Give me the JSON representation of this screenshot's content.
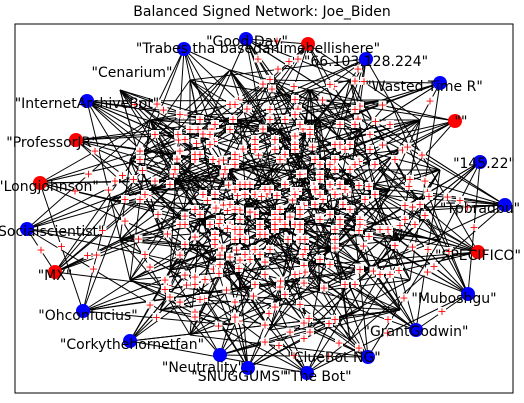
{
  "title": "Balanced Signed Network: Joe_Biden",
  "colors": {
    "negative_node": "#ff0000",
    "positive_node": "#0000ff",
    "edge": "#000000",
    "edge_sign": "#ff0000",
    "frame": "#000000"
  },
  "edge_sign_symbol": "+",
  "nodes": [
    {
      "id": "good-day",
      "label": "\"Good Day\"",
      "group": "positive"
    },
    {
      "id": "trabes",
      "label": "\"Trabes tha basedanimebellishere\"",
      "group": "negative"
    },
    {
      "id": "ip-66",
      "label": "\"66.103.128.224\"",
      "group": "positive"
    },
    {
      "id": "cenarium",
      "label": "\"Cenarium\"",
      "group": "positive"
    },
    {
      "id": "wasted-time",
      "label": "\"Wasted Time R\"",
      "group": "positive"
    },
    {
      "id": "internetarchivebot",
      "label": "\"InternetArchiveBot\"",
      "group": "positive"
    },
    {
      "id": "quote-node",
      "label": "\"\"",
      "group": "negative"
    },
    {
      "id": "professor-jr",
      "label": "\"ProfessorJR\"",
      "group": "negative"
    },
    {
      "id": "ip-145",
      "label": "\"145.22\"",
      "group": "positive"
    },
    {
      "id": "longjohnson",
      "label": "\"Longjohnson\"",
      "group": "negative"
    },
    {
      "id": "tpbradbu",
      "label": "\"Tpbradbu\"",
      "group": "positive"
    },
    {
      "id": "socialscientist",
      "label": "\"Socialscientist\"",
      "group": "positive"
    },
    {
      "id": "spectific",
      "label": "\"SPECIFICO\"",
      "group": "negative"
    },
    {
      "id": "mx",
      "label": "\"MX\"",
      "group": "negative"
    },
    {
      "id": "muboshgu",
      "label": "\"Muboshgu\"",
      "group": "positive"
    },
    {
      "id": "ohconfucius",
      "label": "\"Ohconfucius\"",
      "group": "positive"
    },
    {
      "id": "grant-godwin",
      "label": "\"GrantGodwin\"",
      "group": "positive"
    },
    {
      "id": "corkythehornetfan",
      "label": "\"Corkythehornetfan\"",
      "group": "positive"
    },
    {
      "id": "neutrality",
      "label": "\"Neutrality\"",
      "group": "positive"
    },
    {
      "id": "cluebot-ng",
      "label": "\"ClueBot NG\"",
      "group": "positive"
    },
    {
      "id": "snuggums",
      "label": "\"SNUGGUMS\"",
      "group": "positive"
    },
    {
      "id": "the-bot",
      "label": "\"The Bot\"",
      "group": "positive"
    }
  ]
}
